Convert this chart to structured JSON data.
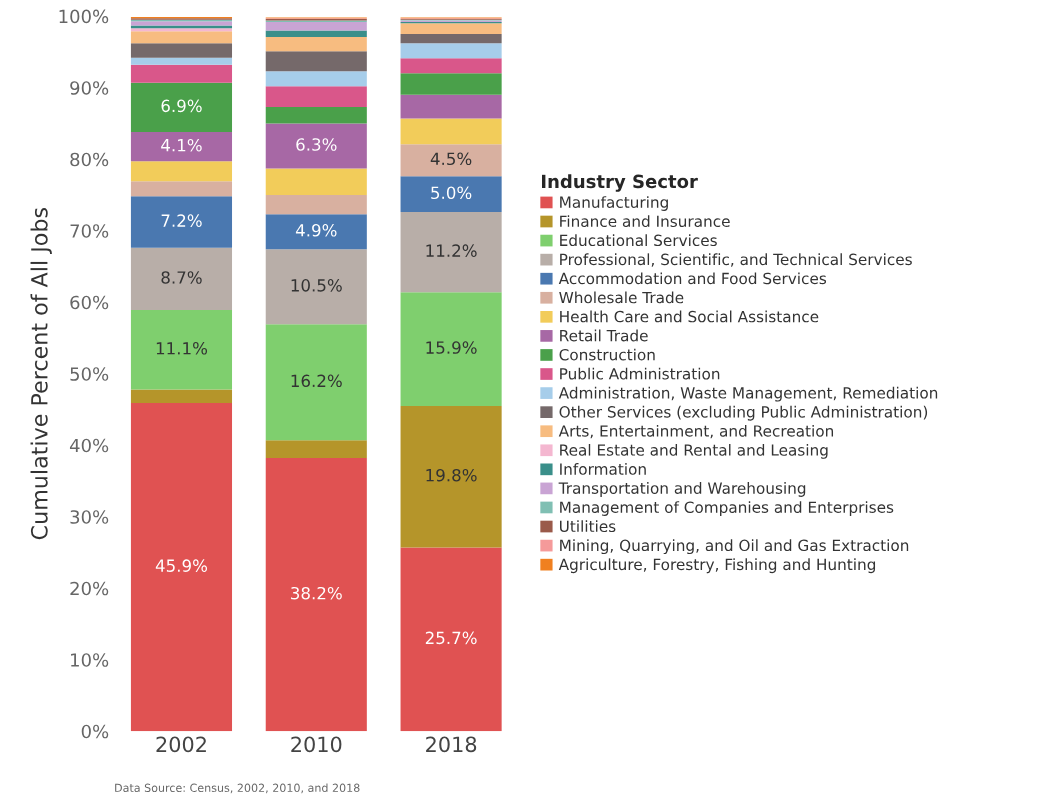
{
  "chart_data": {
    "type": "bar",
    "stacked": true,
    "ylabel": "Cumulative Percent of All Jobs",
    "legend_title": "Industry Sector",
    "legend": "right",
    "grid": false,
    "categories": [
      "2002",
      "2010",
      "2018"
    ],
    "ylim": [
      0,
      100
    ],
    "yticks": [
      {
        "value": 0,
        "label": "0%"
      },
      {
        "value": 10,
        "label": "10%"
      },
      {
        "value": 20,
        "label": "20%"
      },
      {
        "value": 30,
        "label": "30%"
      },
      {
        "value": 40,
        "label": "40%"
      },
      {
        "value": 50,
        "label": "50%"
      },
      {
        "value": 60,
        "label": "60%"
      },
      {
        "value": 70,
        "label": "70%"
      },
      {
        "value": 80,
        "label": "80%"
      },
      {
        "value": 90,
        "label": "90%"
      },
      {
        "value": 100,
        "label": "100%"
      }
    ],
    "series": [
      {
        "name": "Manufacturing",
        "color": "#e05252",
        "values": [
          45.9,
          38.2,
          25.7
        ],
        "value_labels": [
          "45.9%",
          "38.2%",
          "25.7%"
        ]
      },
      {
        "name": "Finance and Insurance",
        "color": "#b5952a",
        "values": [
          1.9,
          2.5,
          19.8
        ],
        "value_labels": [
          null,
          null,
          "19.8%"
        ]
      },
      {
        "name": "Educational Services",
        "color": "#7fcf6e",
        "values": [
          11.1,
          16.2,
          15.9
        ],
        "value_labels": [
          "11.1%",
          "16.2%",
          "15.9%"
        ]
      },
      {
        "name": "Professional, Scientific, and Technical Services",
        "color": "#b8aea8",
        "values": [
          8.7,
          10.5,
          11.2
        ],
        "value_labels": [
          "8.7%",
          "10.5%",
          "11.2%"
        ]
      },
      {
        "name": "Accommodation and Food Services",
        "color": "#4a78b0",
        "values": [
          7.2,
          4.9,
          5.0
        ],
        "value_labels": [
          "7.2%",
          "4.9%",
          "5.0%"
        ]
      },
      {
        "name": "Wholesale Trade",
        "color": "#d8b0a0",
        "values": [
          2.1,
          2.7,
          4.5
        ],
        "value_labels": [
          null,
          null,
          "4.5%"
        ]
      },
      {
        "name": "Health Care and Social Assistance",
        "color": "#f2cc5a",
        "values": [
          2.8,
          3.7,
          3.6
        ]
      },
      {
        "name": "Retail Trade",
        "color": "#a768a5",
        "values": [
          4.1,
          6.3,
          3.3
        ],
        "value_labels": [
          "4.1%",
          "6.3%",
          null
        ]
      },
      {
        "name": "Construction",
        "color": "#4aa04a",
        "values": [
          6.9,
          2.3,
          3.0
        ],
        "value_labels": [
          "6.9%",
          null,
          null
        ]
      },
      {
        "name": "Public Administration",
        "color": "#d9578a",
        "values": [
          2.5,
          2.9,
          2.1
        ]
      },
      {
        "name": "Administration, Waste Management, Remediation",
        "color": "#a6cdea",
        "values": [
          1.0,
          2.1,
          2.1
        ]
      },
      {
        "name": "Other Services (excluding Public Administration)",
        "color": "#75696a",
        "values": [
          2.0,
          2.8,
          1.3
        ]
      },
      {
        "name": "Arts, Entertainment, and Recreation",
        "color": "#f7bc80",
        "values": [
          1.7,
          2.0,
          1.5
        ]
      },
      {
        "name": "Real Estate and Rental and Leasing",
        "color": "#f4b7d0",
        "values": [
          0.4,
          null,
          null
        ]
      },
      {
        "name": "Information",
        "color": "#3a8f8a",
        "values": [
          0.4,
          0.9,
          0.2
        ]
      },
      {
        "name": "Transportation and Warehousing",
        "color": "#c9a4d4",
        "values": [
          0.6,
          1.2,
          0.2
        ]
      },
      {
        "name": "Management of Companies and Enterprises",
        "color": "#80bfb3",
        "values": [
          0.2,
          0.2,
          0.1
        ]
      },
      {
        "name": "Utilities",
        "color": "#9a5a4a",
        "values": [
          0.2,
          0.2,
          0.1
        ]
      },
      {
        "name": "Mining, Quarrying, and Oil and Gas Extraction",
        "color": "#f59a9a",
        "values": [
          null,
          0.1,
          0.1
        ]
      },
      {
        "name": "Agriculture, Forestry, Fishing and Hunting",
        "color": "#f08020",
        "values": [
          0.2,
          0.1,
          0.1
        ]
      }
    ],
    "annotations": [
      "Data Source: Census, 2002, 2010, and 2018"
    ]
  }
}
